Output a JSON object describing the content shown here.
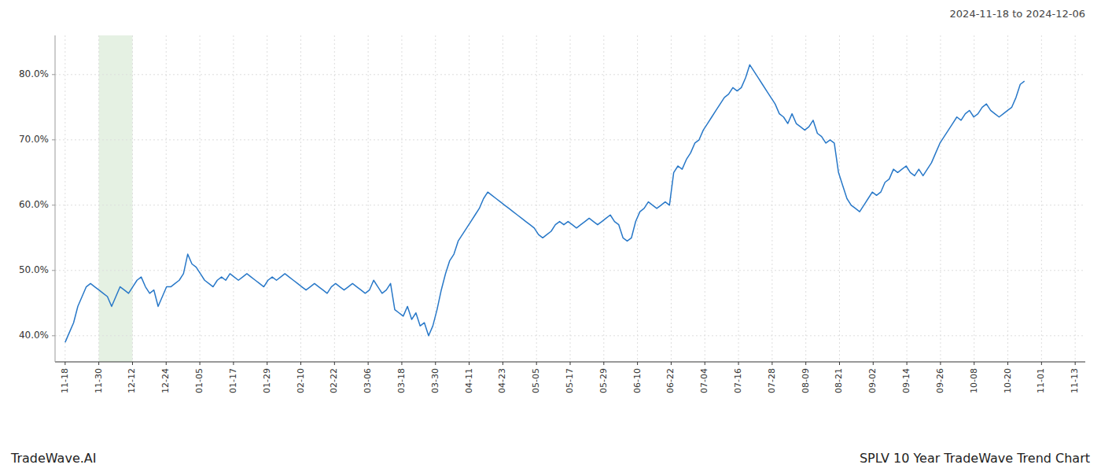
{
  "chart_data": {
    "type": "line",
    "title": "SPLV 10 Year TradeWave Trend Chart",
    "subtitle": "2024-11-18 to 2024-12-06",
    "annotations": [
      "TradeWave.AI"
    ],
    "color": "#2878c8",
    "grid": true,
    "highlight": {
      "start": 7.966666666666667,
      "end": 15.933333333333334,
      "color": "#d4e8d0"
    },
    "xlim": [
      -2.39,
      241.39
    ],
    "xticks": [
      {
        "value": 0,
        "label": "11-18"
      },
      {
        "value": 7.966666666666667,
        "label": "11-30"
      },
      {
        "value": 15.933333333333334,
        "label": "12-12"
      },
      {
        "value": 23.9,
        "label": "12-24"
      },
      {
        "value": 31.866666666666667,
        "label": "01-05"
      },
      {
        "value": 39.833333333333336,
        "label": "01-17"
      },
      {
        "value": 47.8,
        "label": "01-29"
      },
      {
        "value": 55.766666666666666,
        "label": "02-10"
      },
      {
        "value": 63.733333333333334,
        "label": "02-22"
      },
      {
        "value": 71.7,
        "label": "03-06"
      },
      {
        "value": 79.66666666666667,
        "label": "03-18"
      },
      {
        "value": 87.63333333333334,
        "label": "03-30"
      },
      {
        "value": 95.6,
        "label": "04-11"
      },
      {
        "value": 103.56666666666666,
        "label": "04-23"
      },
      {
        "value": 111.53333333333333,
        "label": "05-05"
      },
      {
        "value": 119.5,
        "label": "05-17"
      },
      {
        "value": 127.46666666666667,
        "label": "05-29"
      },
      {
        "value": 135.43333333333334,
        "label": "06-10"
      },
      {
        "value": 143.4,
        "label": "06-22"
      },
      {
        "value": 151.36666666666667,
        "label": "07-04"
      },
      {
        "value": 159.33333333333334,
        "label": "07-16"
      },
      {
        "value": 167.3,
        "label": "07-28"
      },
      {
        "value": 175.26666666666668,
        "label": "08-09"
      },
      {
        "value": 183.23333333333332,
        "label": "08-21"
      },
      {
        "value": 191.2,
        "label": "09-02"
      },
      {
        "value": 199.16666666666666,
        "label": "09-14"
      },
      {
        "value": 207.13333333333333,
        "label": "09-26"
      },
      {
        "value": 215.1,
        "label": "10-08"
      },
      {
        "value": 223.06666666666666,
        "label": "10-20"
      },
      {
        "value": 231.03333333333333,
        "label": "11-01"
      },
      {
        "value": 239,
        "label": "11-13"
      }
    ],
    "ylim": [
      36,
      86
    ],
    "yticks": [
      {
        "value": 40,
        "label": "40.0%"
      },
      {
        "value": 50,
        "label": "50.0%"
      },
      {
        "value": 60,
        "label": "60.0%"
      },
      {
        "value": 70,
        "label": "70.0%"
      },
      {
        "value": 80,
        "label": "80.0%"
      }
    ],
    "values": [
      39.0,
      40.5,
      42.0,
      44.5,
      46.0,
      47.5,
      48.0,
      47.5,
      47.0,
      46.5,
      46.0,
      44.5,
      46.0,
      47.5,
      47.0,
      46.5,
      47.5,
      48.5,
      49.0,
      47.5,
      46.5,
      47.0,
      44.5,
      46.0,
      47.5,
      47.5,
      48.0,
      48.5,
      49.5,
      52.5,
      51.0,
      50.5,
      49.5,
      48.5,
      48.0,
      47.5,
      48.5,
      49.0,
      48.5,
      49.5,
      49.0,
      48.5,
      49.0,
      49.5,
      49.0,
      48.5,
      48.0,
      47.5,
      48.5,
      49.0,
      48.5,
      49.0,
      49.5,
      49.0,
      48.5,
      48.0,
      47.5,
      47.0,
      47.5,
      48.0,
      47.5,
      47.0,
      46.5,
      47.5,
      48.0,
      47.5,
      47.0,
      47.5,
      48.0,
      47.5,
      47.0,
      46.5,
      47.0,
      48.5,
      47.5,
      46.5,
      47.0,
      48.0,
      44.0,
      43.5,
      43.0,
      44.5,
      42.5,
      43.5,
      41.5,
      42.0,
      40.0,
      41.5,
      44.0,
      47.0,
      49.5,
      51.5,
      52.5,
      54.5,
      55.5,
      56.5,
      57.5,
      58.5,
      59.5,
      61.0,
      62.0,
      61.5,
      61.0,
      60.5,
      60.0,
      59.5,
      59.0,
      58.5,
      58.0,
      57.5,
      57.0,
      56.5,
      55.5,
      55.0,
      55.5,
      56.0,
      57.0,
      57.5,
      57.0,
      57.5,
      57.0,
      56.5,
      57.0,
      57.5,
      58.0,
      57.5,
      57.0,
      57.5,
      58.0,
      58.5,
      57.5,
      57.0,
      55.0,
      54.5,
      55.0,
      57.5,
      59.0,
      59.5,
      60.5,
      60.0,
      59.5,
      60.0,
      60.5,
      60.0,
      65.0,
      66.0,
      65.5,
      67.0,
      68.0,
      69.5,
      70.0,
      71.5,
      72.5,
      73.5,
      74.5,
      75.5,
      76.5,
      77.0,
      78.0,
      77.5,
      78.0,
      79.5,
      81.5,
      80.5,
      79.5,
      78.5,
      77.5,
      76.5,
      75.5,
      74.0,
      73.5,
      72.5,
      74.0,
      72.5,
      72.0,
      71.5,
      72.0,
      73.0,
      71.0,
      70.5,
      69.5,
      70.0,
      69.5,
      65.0,
      63.0,
      61.0,
      60.0,
      59.5,
      59.0,
      60.0,
      61.0,
      62.0,
      61.5,
      62.0,
      63.5,
      64.0,
      65.5,
      65.0,
      65.5,
      66.0,
      65.0,
      64.5,
      65.5,
      64.5,
      65.5,
      66.5,
      68.0,
      69.5,
      70.5,
      71.5,
      72.5,
      73.5,
      73.0,
      74.0,
      74.5,
      73.5,
      74.0,
      75.0,
      75.5,
      74.5,
      74.0,
      73.5,
      74.0,
      74.5,
      75.0,
      76.5,
      78.5,
      79.0
    ]
  }
}
